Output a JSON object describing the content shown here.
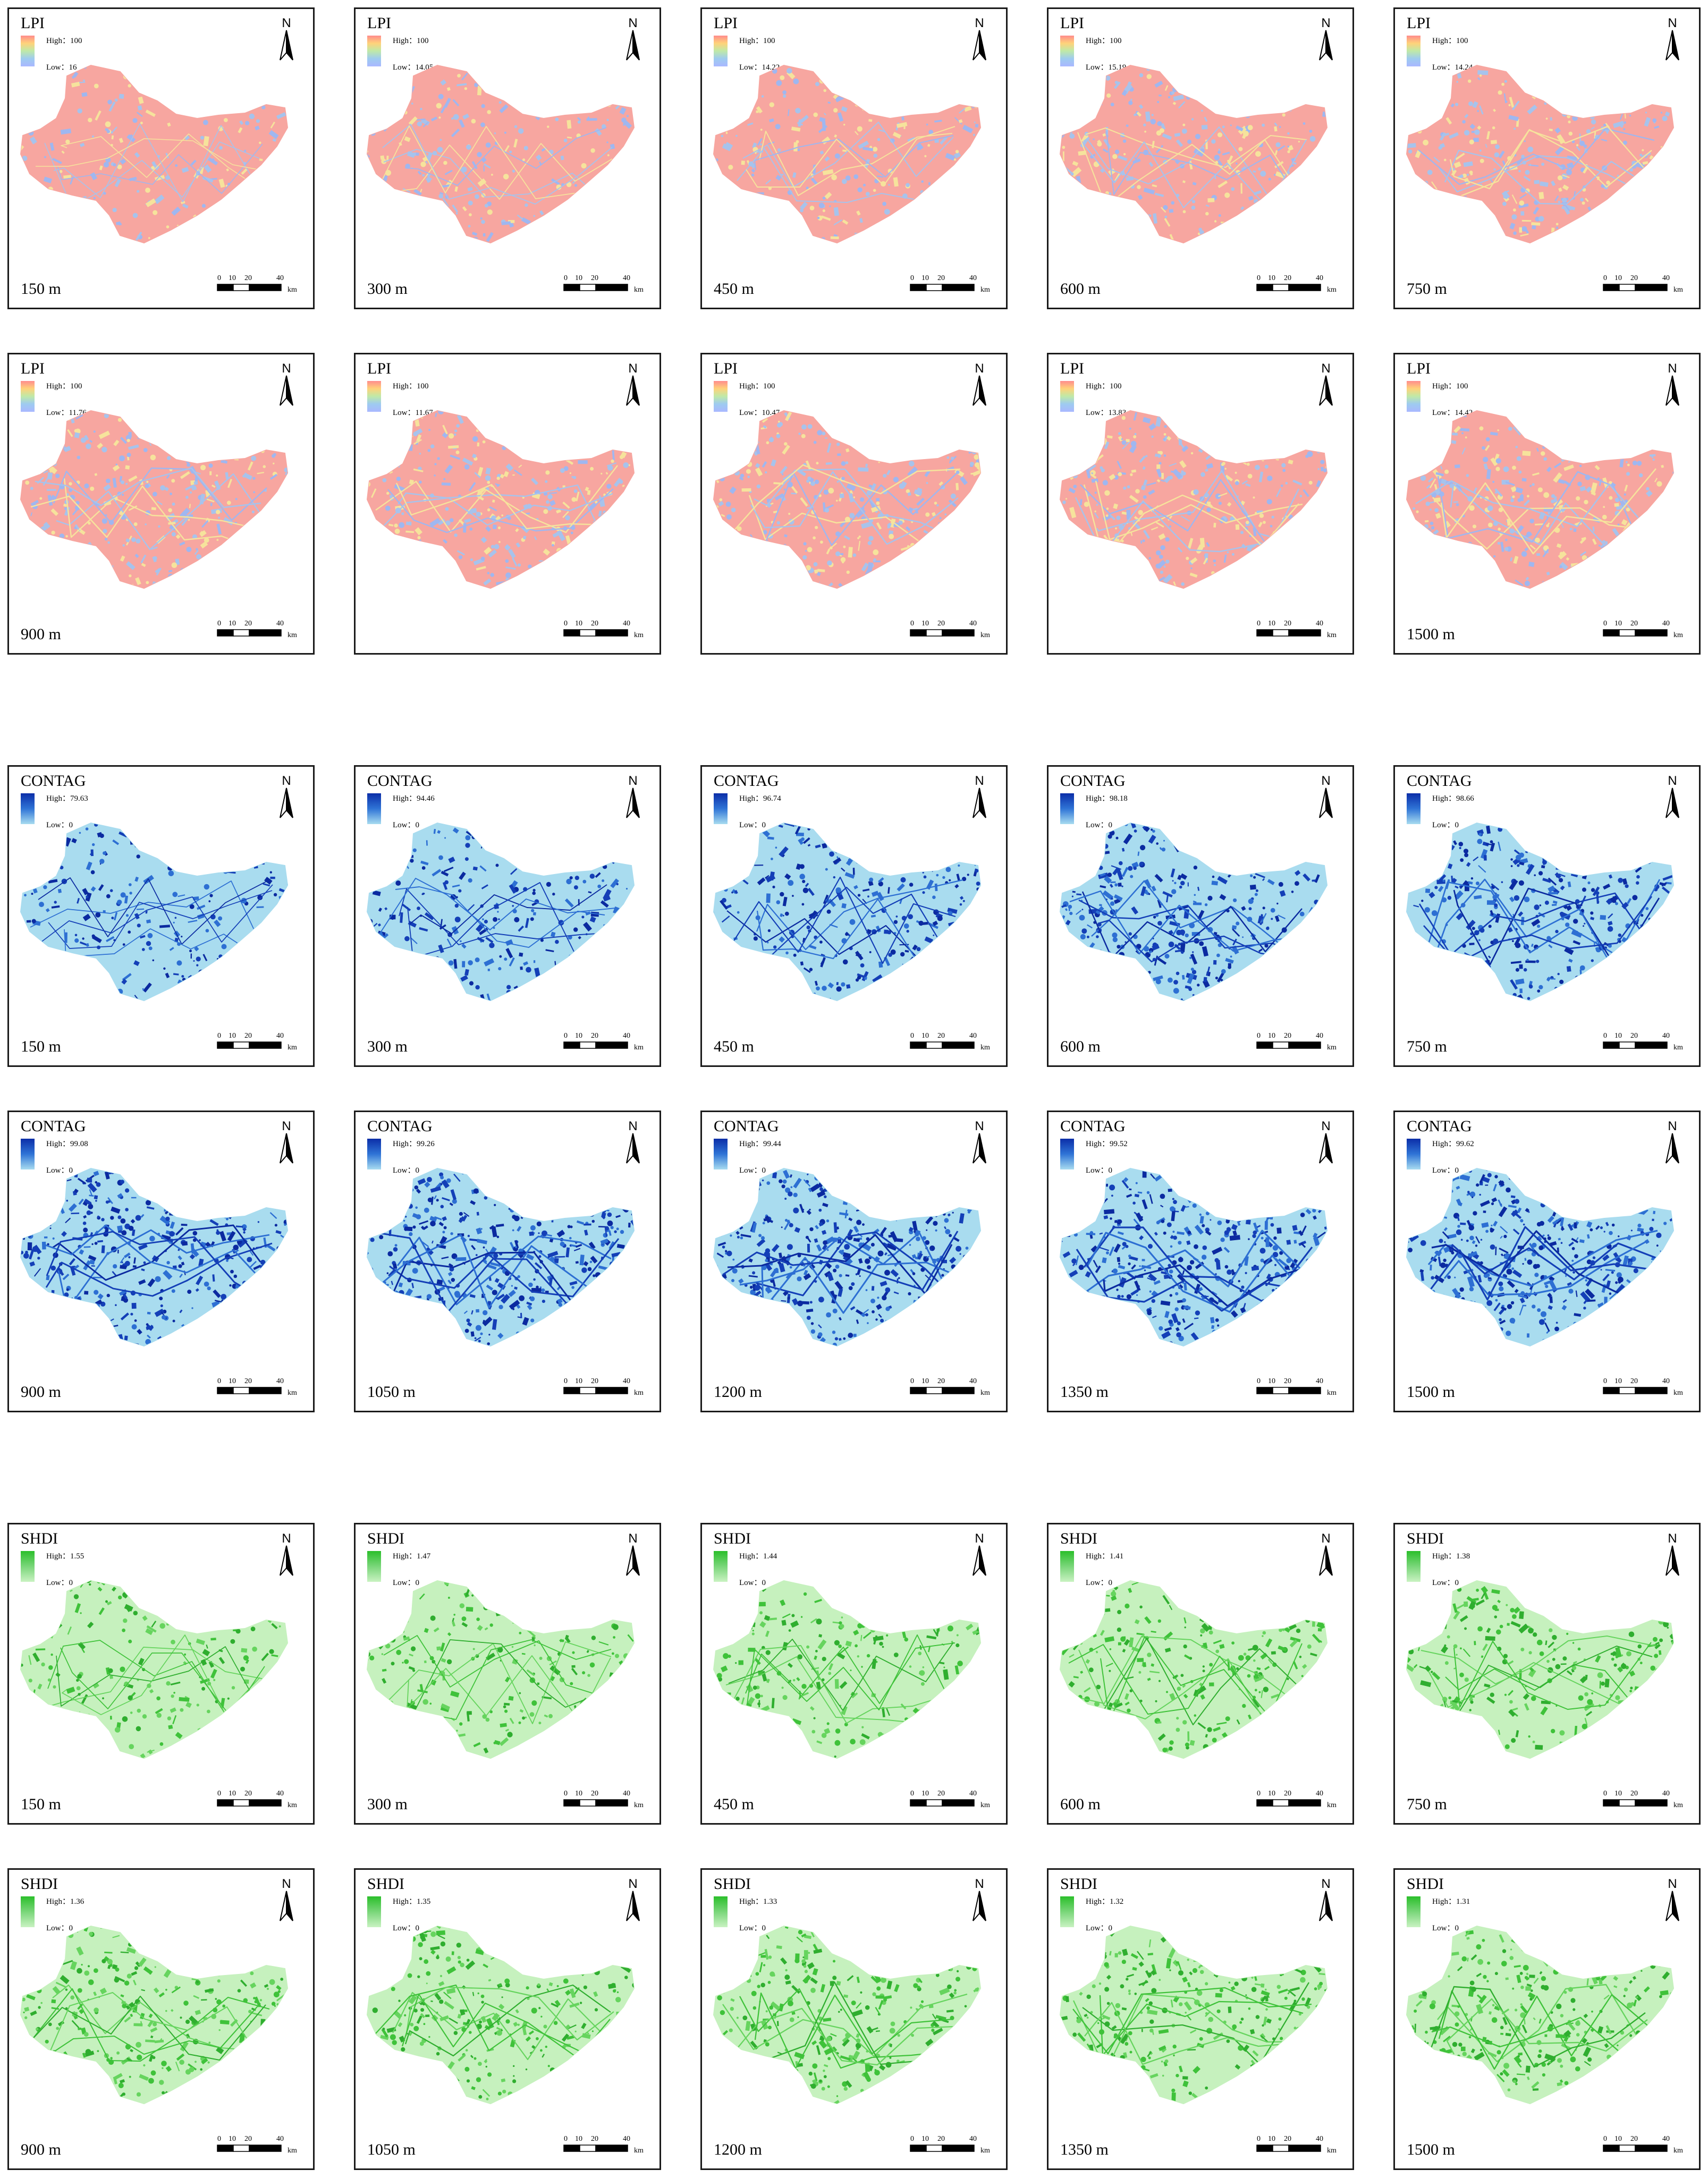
{
  "legend": {
    "high_prefix": "High：",
    "low_prefix": "Low："
  },
  "north_letter": "N",
  "scale_bar": {
    "ticks": [
      "0",
      "10",
      "20",
      "40"
    ],
    "unit": "km"
  },
  "palettes": {
    "LPI": {
      "ramp": [
        "#ff8c8c",
        "#ffd27a",
        "#bfe9a8",
        "#9ecbf0",
        "#a9b8ff"
      ],
      "base": "#f7a6a0",
      "accents": [
        "#a7c3ec",
        "#f6e39c",
        "#9fb7f0"
      ]
    },
    "CONTAG": {
      "ramp": [
        "#0b2ea8",
        "#2f74d6",
        "#a8dcf0"
      ],
      "base": "#a9dcef",
      "accents": [
        "#2d6fd3",
        "#143fb7",
        "#0b2aa0"
      ]
    },
    "SHDI": {
      "ramp": [
        "#2bbf2b",
        "#7ad67a",
        "#c9f2c2"
      ],
      "base": "#c6f1be",
      "accents": [
        "#66d45e",
        "#3fc23a",
        "#2fae2f"
      ]
    }
  },
  "rows": [
    {
      "index": "LPI",
      "panels": [
        {
          "label": "LPI",
          "high": "100",
          "low": "16",
          "res": "150 m",
          "level": 0.2
        },
        {
          "label": "LPI",
          "high": "100",
          "low": "14.05",
          "res": "300 m",
          "level": 0.28
        },
        {
          "label": "LPI",
          "high": "100",
          "low": "14.22",
          "res": "450 m",
          "level": 0.34
        },
        {
          "label": "LPI",
          "high": "100",
          "low": "15.19",
          "res": "600 m",
          "level": 0.38
        },
        {
          "label": "LPI",
          "high": "100",
          "low": "14.24",
          "res": "750 m",
          "level": 0.42
        }
      ]
    },
    {
      "index": "LPI",
      "panels": [
        {
          "label": "LPI",
          "high": "100",
          "low": "11.76",
          "res": "900 m",
          "level": 0.45
        },
        {
          "label": "LPI",
          "high": "100",
          "low": "11.67",
          "res": "",
          "level": 0.47
        },
        {
          "label": "LPI",
          "high": "100",
          "low": "10.47",
          "res": "",
          "level": 0.49
        },
        {
          "label": "LPI",
          "high": "100",
          "low": "13.83",
          "res": "",
          "level": 0.5
        },
        {
          "label": "LPI",
          "high": "100",
          "low": "14.42",
          "res": "1500 m",
          "level": 0.52
        }
      ]
    },
    {
      "index": "CONTAG",
      "panels": [
        {
          "label": "CONTAG",
          "high": "79.63",
          "low": "0",
          "res": "150 m",
          "level": 0.22
        },
        {
          "label": "CONTAG",
          "high": "94.46",
          "low": "0",
          "res": "300 m",
          "level": 0.3
        },
        {
          "label": "CONTAG",
          "high": "96.74",
          "low": "0",
          "res": "450 m",
          "level": 0.4
        },
        {
          "label": "CONTAG",
          "high": "98.18",
          "low": "0",
          "res": "600 m",
          "level": 0.5
        },
        {
          "label": "CONTAG",
          "high": "98.66",
          "low": "0",
          "res": "750 m",
          "level": 0.56
        }
      ]
    },
    {
      "index": "CONTAG",
      "panels": [
        {
          "label": "CONTAG",
          "high": "99.08",
          "low": "0",
          "res": "900 m",
          "level": 0.62
        },
        {
          "label": "CONTAG",
          "high": "99.26",
          "low": "0",
          "res": "1050 m",
          "level": 0.66
        },
        {
          "label": "CONTAG",
          "high": "99.44",
          "low": "0",
          "res": "1200 m",
          "level": 0.7
        },
        {
          "label": "CONTAG",
          "high": "99.52",
          "low": "0",
          "res": "1350 m",
          "level": 0.72
        },
        {
          "label": "CONTAG",
          "high": "99.62",
          "low": "0",
          "res": "1500 m",
          "level": 0.74
        }
      ]
    },
    {
      "index": "SHDI",
      "panels": [
        {
          "label": "SHDI",
          "high": "1.55",
          "low": "0",
          "res": "150 m",
          "level": 0.22
        },
        {
          "label": "SHDI",
          "high": "1.47",
          "low": "0",
          "res": "300 m",
          "level": 0.27
        },
        {
          "label": "SHDI",
          "high": "1.44",
          "low": "0",
          "res": "450 m",
          "level": 0.3
        },
        {
          "label": "SHDI",
          "high": "1.41",
          "low": "0",
          "res": "600 m",
          "level": 0.33
        },
        {
          "label": "SHDI",
          "high": "1.38",
          "low": "0",
          "res": "750 m",
          "level": 0.35
        }
      ]
    },
    {
      "index": "SHDI",
      "panels": [
        {
          "label": "SHDI",
          "high": "1.36",
          "low": "0",
          "res": "900 m",
          "level": 0.38
        },
        {
          "label": "SHDI",
          "high": "1.35",
          "low": "0",
          "res": "1050 m",
          "level": 0.4
        },
        {
          "label": "SHDI",
          "high": "1.33",
          "low": "0",
          "res": "1200 m",
          "level": 0.42
        },
        {
          "label": "SHDI",
          "high": "1.32",
          "low": "0",
          "res": "1350 m",
          "level": 0.44
        },
        {
          "label": "SHDI",
          "high": "1.31",
          "low": "0",
          "res": "1500 m",
          "level": 0.46
        }
      ]
    }
  ]
}
